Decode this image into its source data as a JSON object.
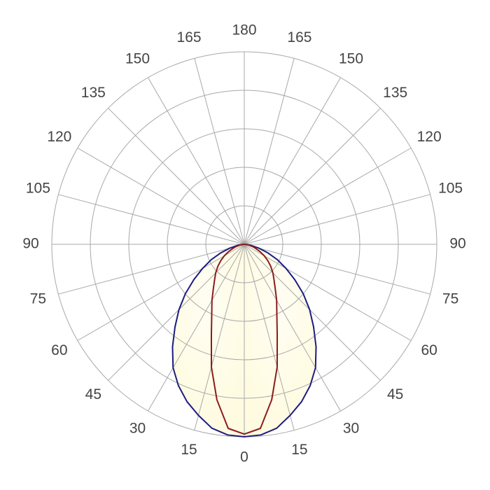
{
  "chart_data": {
    "type": "polar",
    "thetaticks": [
      0,
      15,
      30,
      45,
      60,
      75,
      90,
      105,
      120,
      135,
      150,
      165,
      180
    ],
    "rlim": [
      0,
      5
    ],
    "rticks": [
      1,
      2,
      3,
      4,
      5
    ],
    "fill_color": "#fffbe0",
    "angles": [
      0,
      5,
      10,
      15,
      20,
      25,
      30,
      35,
      40,
      45,
      50,
      55,
      60,
      65,
      70,
      75,
      80,
      85,
      90
    ],
    "series": [
      {
        "color": "#1c1c82",
        "values": [
          5.0,
          4.97,
          4.85,
          4.6,
          4.35,
          4.05,
          3.7,
          3.25,
          2.8,
          2.4,
          2.0,
          1.6,
          1.25,
          0.95,
          0.65,
          0.4,
          0.2,
          0.08,
          0
        ]
      },
      {
        "color": "#8b1c1c",
        "values": [
          4.93,
          4.8,
          4.1,
          3.3,
          2.5,
          2.0,
          1.68,
          1.4,
          1.2,
          1.05,
          0.9,
          0.75,
          0.6,
          0.45,
          0.32,
          0.22,
          0.12,
          0.05,
          0
        ]
      }
    ]
  }
}
